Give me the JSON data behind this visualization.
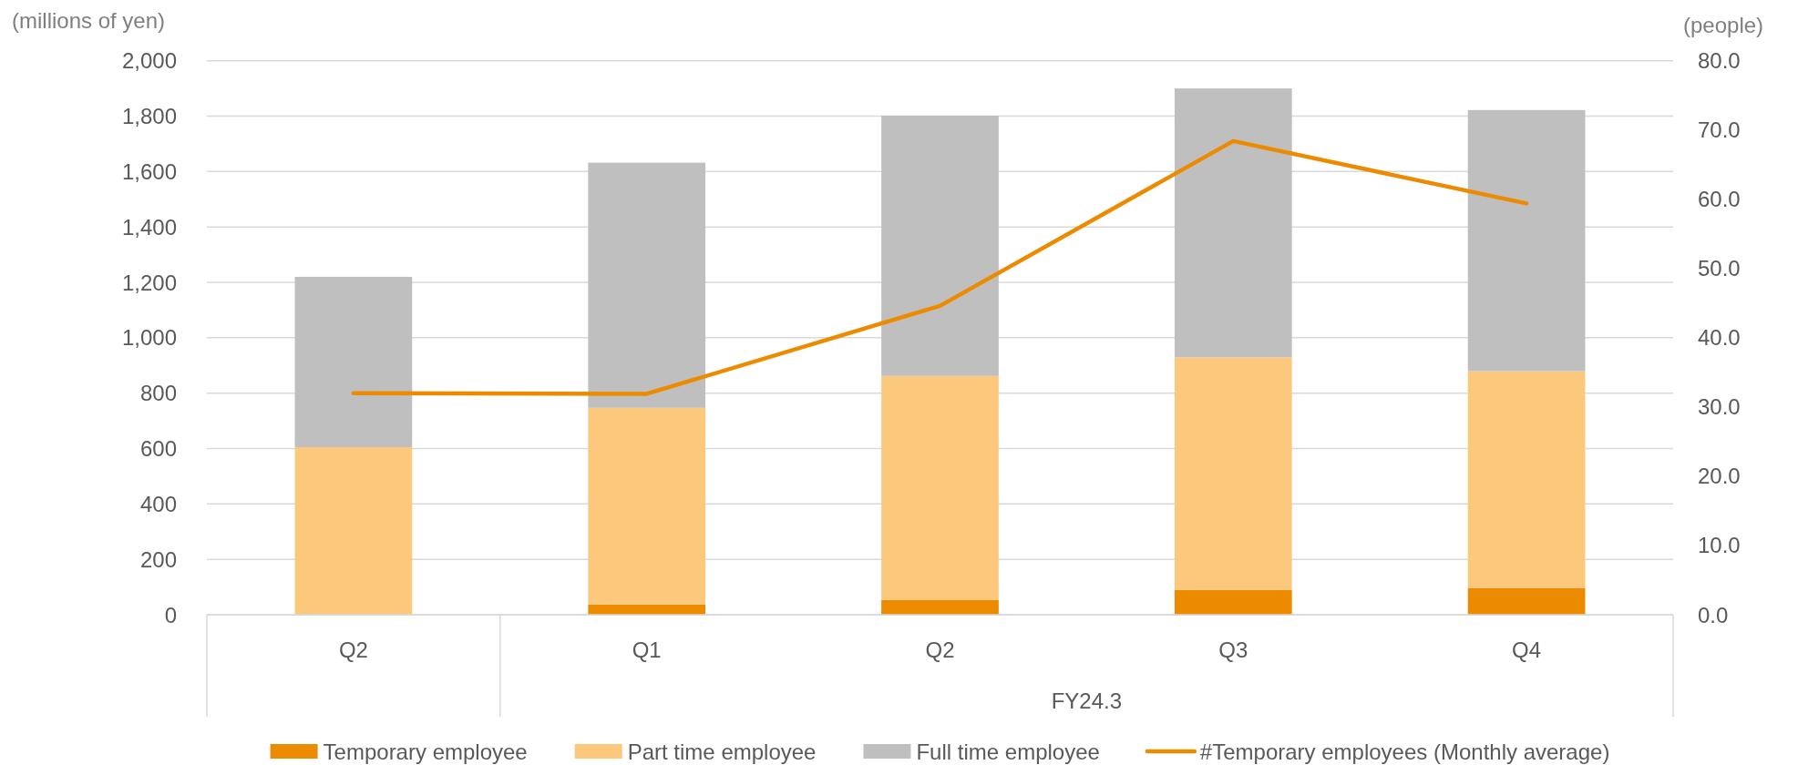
{
  "chart_data": {
    "type": "bar",
    "stacked": true,
    "ylabel": "(millions of yen)",
    "y2label": "(people)",
    "categories": [
      "Q2",
      "Q1",
      "Q2",
      "Q3",
      "Q4"
    ],
    "series": [
      {
        "name": "Temporary employee",
        "color": "#ed8b00",
        "values": [
          0,
          37,
          53,
          89,
          97
        ]
      },
      {
        "name": "Part time employee",
        "color": "#fcc97c",
        "values": [
          605,
          710,
          809,
          840,
          782
        ]
      },
      {
        "name": "Full time employee",
        "color": "#bfbfbf",
        "values": [
          615,
          885,
          940,
          971,
          943
        ]
      },
      {
        "name": "#Temporary employees (Monthly average)",
        "type": "line",
        "axis": "y2",
        "color": "#ed8b00",
        "values": [
          32.0,
          31.9,
          44.6,
          68.4,
          59.4
        ]
      }
    ],
    "ylim": [
      0,
      2000
    ],
    "yticks": [
      0,
      200,
      400,
      600,
      800,
      {
        "value": 1000,
        "label": "1,000"
      },
      {
        "value": 1200,
        "label": "1,200"
      },
      {
        "value": 1400,
        "label": "1,400"
      },
      {
        "value": 1600,
        "label": "1,600"
      },
      {
        "value": 1800,
        "label": "1,800"
      },
      {
        "value": 2000,
        "label": "2,000"
      }
    ],
    "y2lim": [
      0,
      80
    ],
    "y2ticks": [
      {
        "value": 0,
        "label": "0.0"
      },
      {
        "value": 10,
        "label": "10.0"
      },
      {
        "value": 20,
        "label": "20.0"
      },
      {
        "value": 30,
        "label": "30.0"
      },
      {
        "value": 40,
        "label": "40.0"
      },
      {
        "value": 50,
        "label": "50.0"
      },
      {
        "value": 60,
        "label": "60.0"
      },
      {
        "value": 70,
        "label": "70.0"
      },
      {
        "value": 80,
        "label": "80.0"
      }
    ],
    "grid": "y",
    "legend": "bottom",
    "annotations": [
      "FY24.3"
    ]
  }
}
